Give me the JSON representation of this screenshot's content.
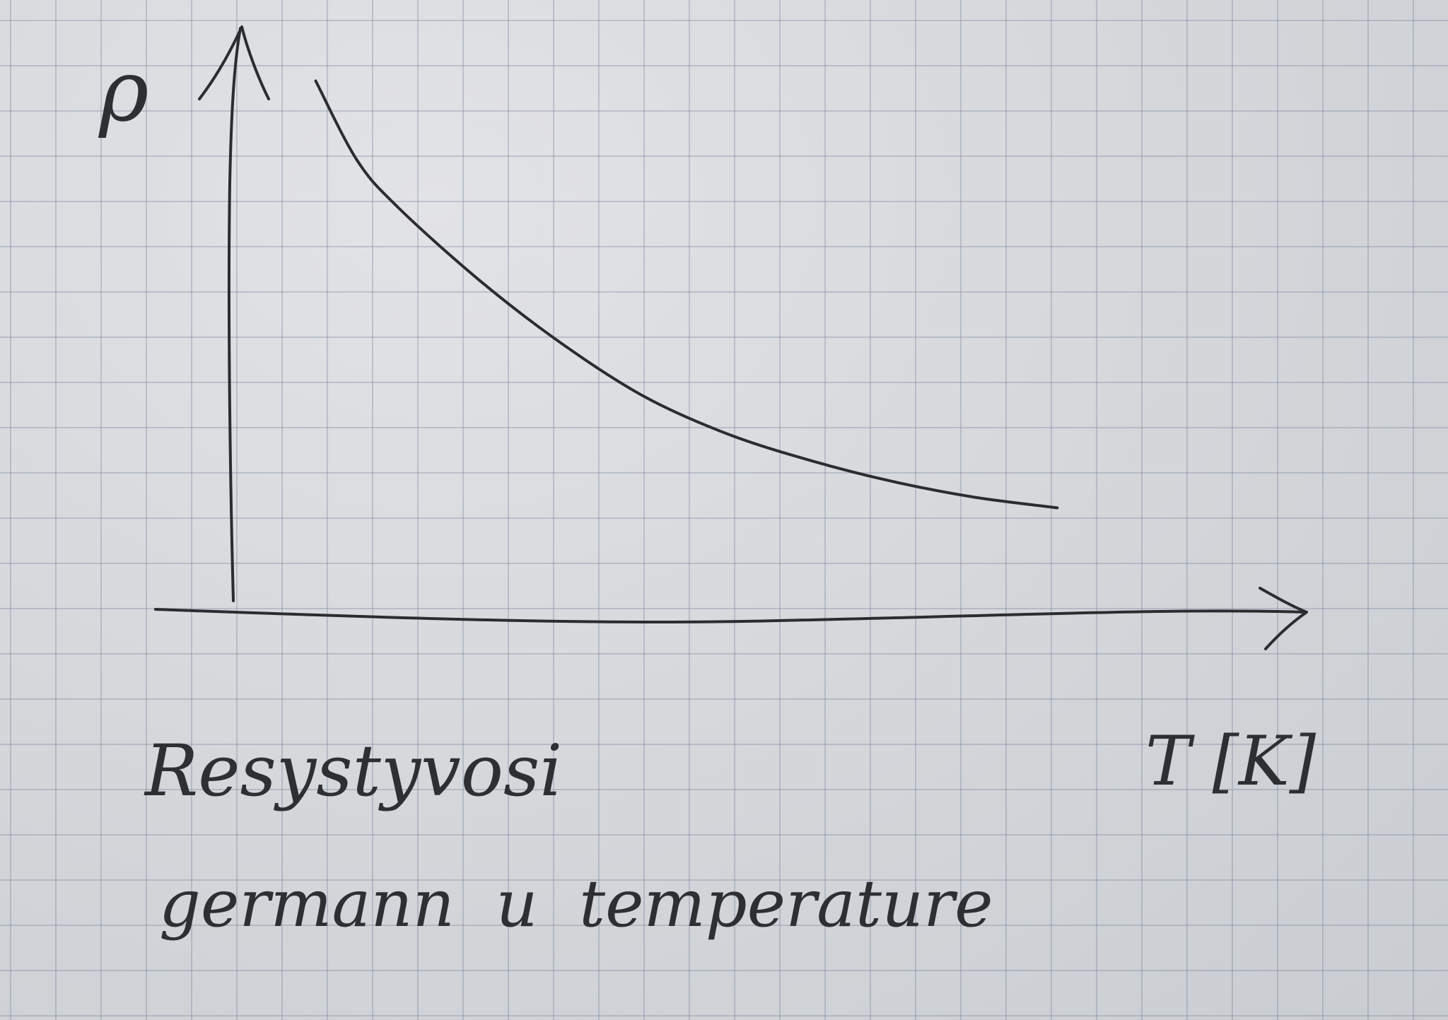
{
  "chart_data": {
    "type": "line",
    "title": "",
    "ylabel": "ρ",
    "xlabel": "T [K]",
    "caption_lines": [
      "Resystyvosi",
      "germann  u  temperature"
    ],
    "grid": true,
    "axes_arrows": true,
    "series": [
      {
        "values_shape": "decreasing-convex",
        "x": [
          1.0,
          1.5,
          2.0,
          3.0,
          4.0,
          5.0,
          6.0,
          7.0,
          8.0,
          9.0,
          10.0
        ],
        "y": [
          10.0,
          8.5,
          7.6,
          6.2,
          5.0,
          4.0,
          3.3,
          2.8,
          2.4,
          2.1,
          1.9
        ]
      }
    ],
    "xlim": [
      0,
      13
    ],
    "ylim": [
      0,
      11
    ],
    "ink_color": "#2b2c30"
  }
}
